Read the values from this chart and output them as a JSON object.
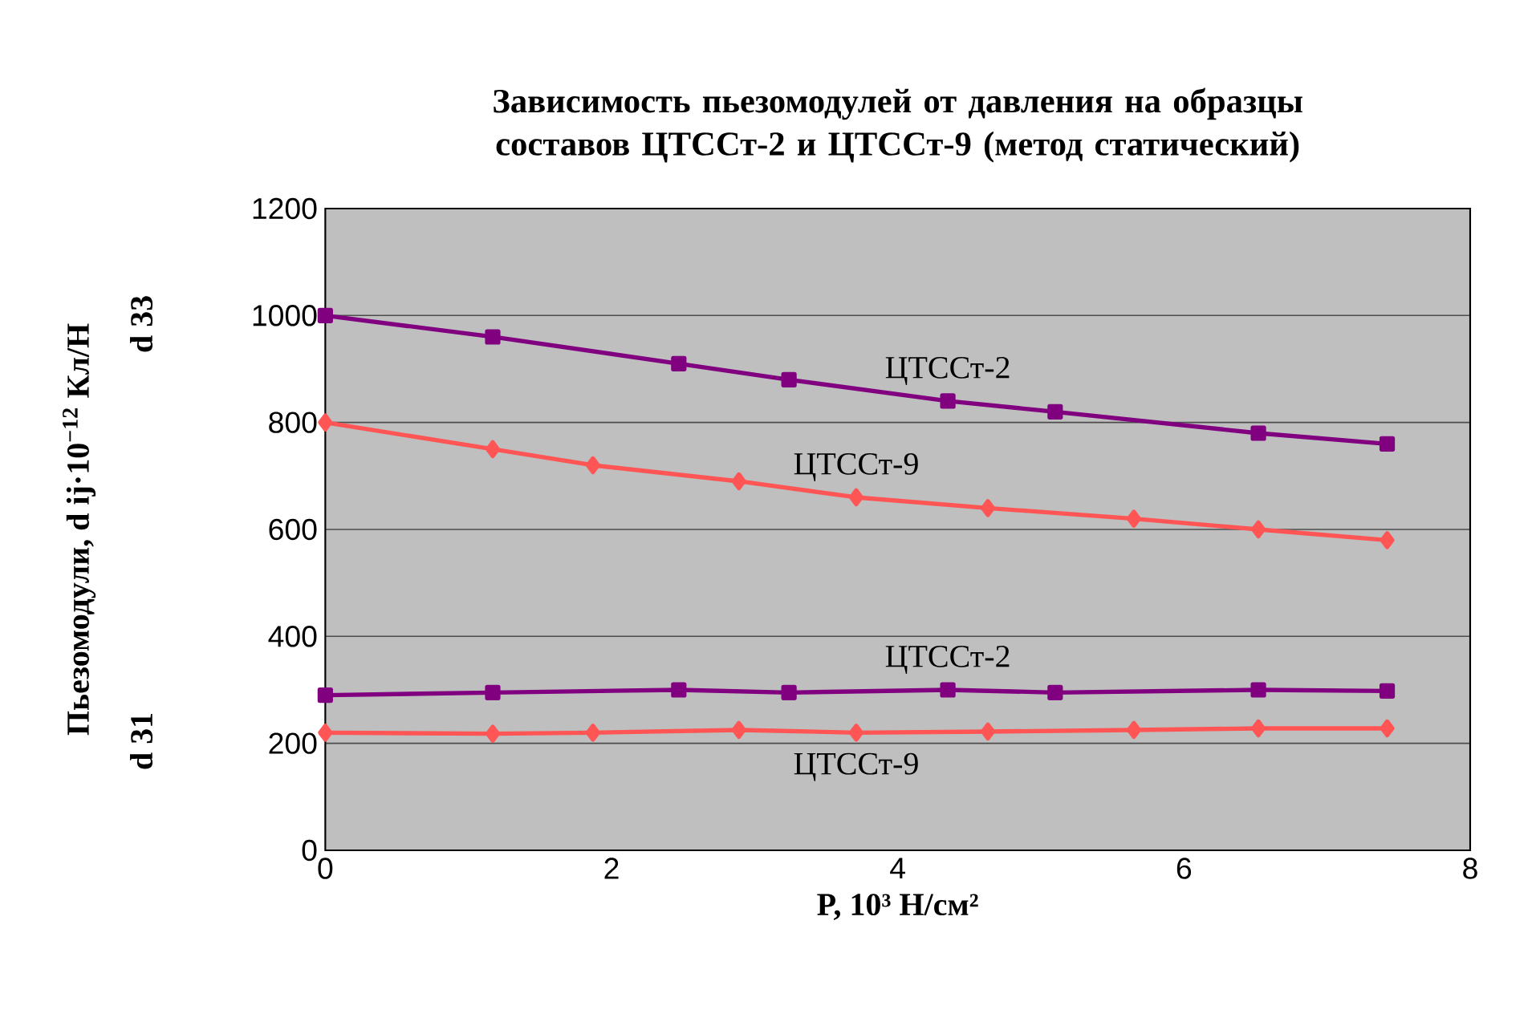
{
  "chart_data": {
    "type": "line",
    "title": "Зависимость пьезомодулей от давления на образцы составов ЦТССт-2 и ЦТССт-9 (метод статический)",
    "xlabel": "P, 10³ Н/см²",
    "ylabel": "Пьезомодули, d ij·10$^{−12}$ Кл/Н",
    "annotations": [
      "d 33",
      "d 31"
    ],
    "xlim": [
      0,
      8
    ],
    "xticks": [
      0,
      2,
      4,
      6,
      8
    ],
    "ylim": [
      0,
      1200
    ],
    "yticks": [
      0,
      200,
      400,
      600,
      800,
      1000,
      1200
    ],
    "grid": "y",
    "line_style": "solid",
    "series": [
      {
        "name": "ЦТССт-2",
        "color": "#800080",
        "marker": "square",
        "x": [
          0,
          1.17,
          2.47,
          3.24,
          4.35,
          5.1,
          6.52,
          7.42
        ],
        "values": [
          1000,
          960,
          910,
          880,
          840,
          820,
          780,
          760
        ]
      },
      {
        "name": "ЦТССт-9",
        "color": "#ff5555",
        "marker": "diamond",
        "x": [
          0,
          1.17,
          1.87,
          2.89,
          3.71,
          4.63,
          5.65,
          6.52,
          7.42
        ],
        "values": [
          800,
          750,
          720,
          690,
          660,
          640,
          620,
          600,
          580
        ]
      },
      {
        "name": "ЦТССт-2",
        "color": "#800080",
        "marker": "square",
        "x": [
          0,
          1.17,
          2.47,
          3.24,
          4.35,
          5.1,
          6.52,
          7.42
        ],
        "values": [
          290,
          295,
          300,
          295,
          300,
          295,
          300,
          298
        ]
      },
      {
        "name": "ЦТССт-9",
        "color": "#ff5555",
        "marker": "diamond",
        "x": [
          0,
          1.17,
          1.87,
          2.89,
          3.71,
          4.63,
          5.65,
          6.52,
          7.42
        ],
        "values": [
          220,
          218,
          220,
          225,
          220,
          222,
          225,
          228,
          228
        ]
      }
    ]
  }
}
